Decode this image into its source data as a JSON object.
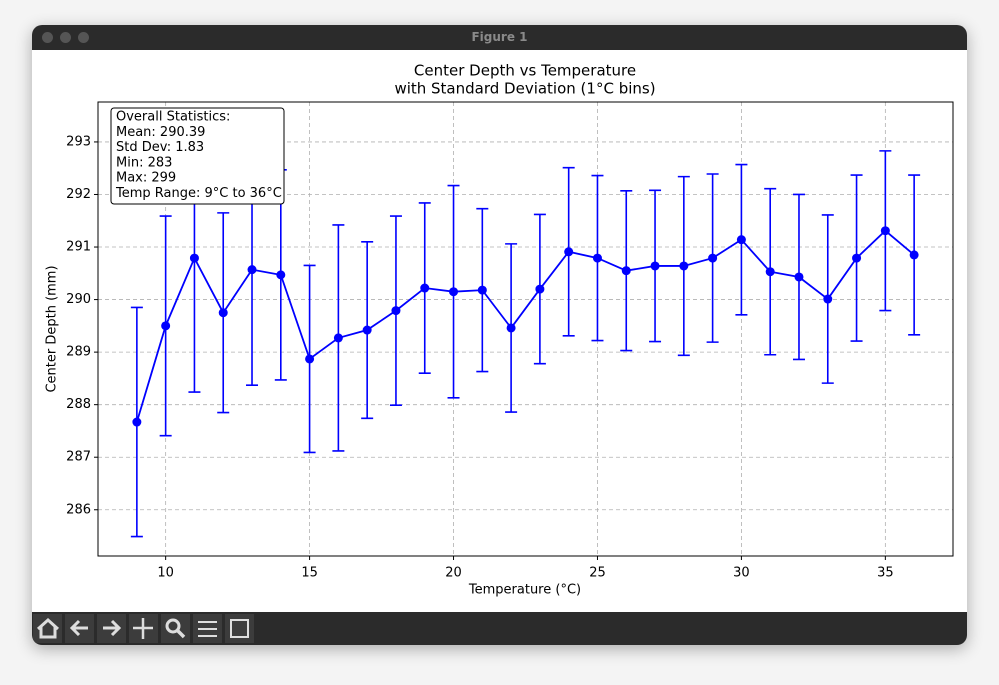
{
  "window": {
    "title": "Figure 1"
  },
  "chart_data": {
    "type": "errorbar-line",
    "title": "Center Depth vs Temperature",
    "subtitle": "with Standard Deviation (1°C bins)",
    "x_label": "Temperature (°C)",
    "y_label": "Center Depth (mm)",
    "x": [
      9,
      10,
      11,
      12,
      13,
      14,
      15,
      16,
      17,
      18,
      19,
      20,
      21,
      22,
      23,
      24,
      25,
      26,
      27,
      28,
      29,
      30,
      31,
      32,
      33,
      34,
      35,
      36
    ],
    "series": [
      {
        "color": "#0000ff",
        "values": [
          287.67,
          289.5,
          290.79,
          289.75,
          290.57,
          290.47,
          288.87,
          289.27,
          289.42,
          289.79,
          290.22,
          290.15,
          290.18,
          289.46,
          290.2,
          290.91,
          290.79,
          290.55,
          290.64,
          290.64,
          290.79,
          291.14,
          290.53,
          290.43,
          290.01,
          290.79,
          291.31,
          290.85
        ],
        "errors": [
          2.18,
          2.09,
          2.55,
          1.9,
          2.2,
          2.0,
          1.78,
          2.15,
          1.68,
          1.8,
          1.62,
          2.02,
          1.55,
          1.6,
          1.42,
          1.6,
          1.57,
          1.52,
          1.44,
          1.7,
          1.6,
          1.43,
          1.58,
          1.57,
          1.6,
          1.58,
          1.52,
          1.52
        ]
      }
    ],
    "xlim": [
      7.65,
      37.35
    ],
    "ylim": [
      285.12,
      293.76
    ],
    "xticks": [
      10,
      15,
      20,
      25,
      30,
      35
    ],
    "yticks": [
      286,
      287,
      288,
      289,
      290,
      291,
      292,
      293
    ],
    "grid": true,
    "annotation": [
      "Overall Statistics:",
      "Mean: 290.39",
      "Std Dev: 1.83",
      "Min: 283",
      "Max: 299",
      "Temp Range: 9°C to 36°C"
    ]
  }
}
